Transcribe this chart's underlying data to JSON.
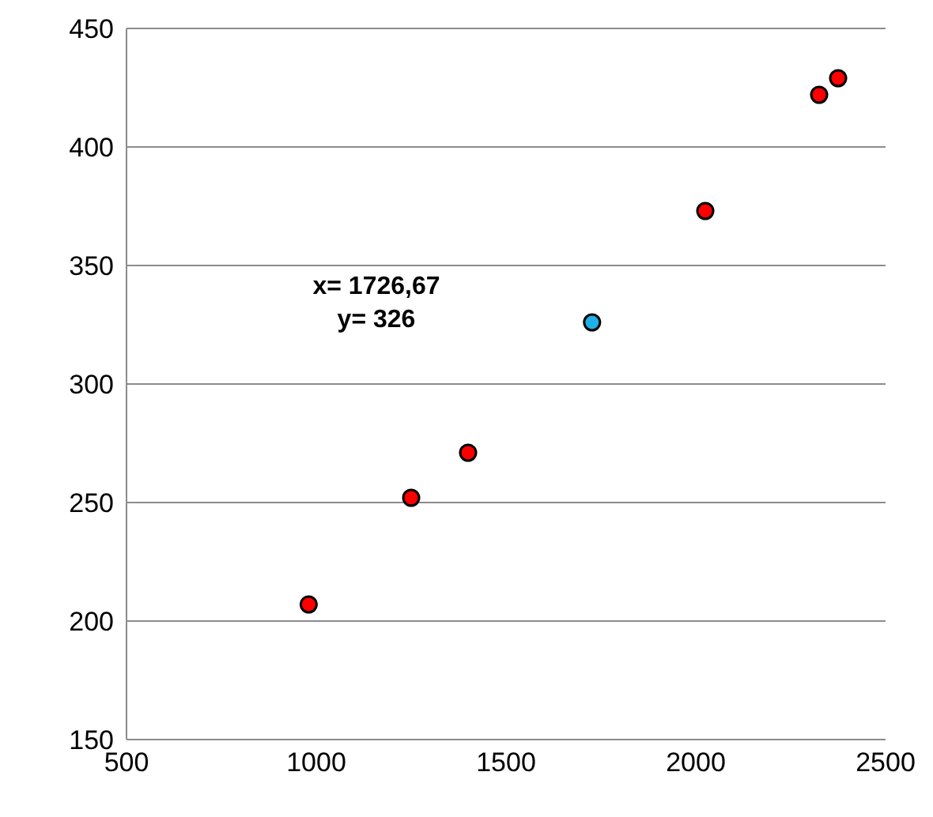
{
  "chart_data": {
    "type": "scatter",
    "xlim": [
      500,
      2500
    ],
    "xticks": [
      500,
      1000,
      1500,
      2000,
      2500
    ],
    "ylim": [
      150,
      450
    ],
    "yticks": [
      150,
      200,
      250,
      300,
      350,
      400,
      450
    ],
    "grid": "y",
    "marker": "circle",
    "series": [
      {
        "color": "#ff0000",
        "x": [
          980,
          1250,
          1400,
          2025,
          2325,
          2375
        ],
        "values": [
          207,
          252,
          271,
          373,
          422,
          429
        ]
      },
      {
        "color": "#1fb0e6",
        "x": [
          1726.67
        ],
        "values": [
          326
        ]
      }
    ],
    "annotations": [
      "x= 1726,67\ny= 326"
    ]
  }
}
